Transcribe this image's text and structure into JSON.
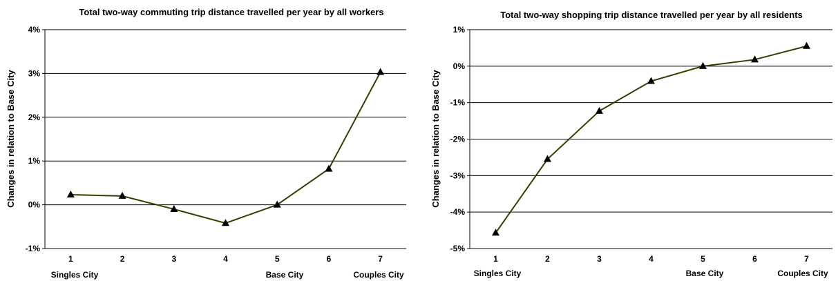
{
  "chart_data": [
    {
      "type": "line",
      "title": "Total two-way commuting trip distance travelled per year by all workers",
      "xlabel": "",
      "ylabel": "Changes in relation to Base City",
      "x": [
        1,
        2,
        3,
        4,
        5,
        6,
        7
      ],
      "x_tick_labels": [
        "1",
        "2",
        "3",
        "4",
        "5",
        "6",
        "7"
      ],
      "category_labels": [
        {
          "x": 1,
          "text": "Singles City"
        },
        {
          "x": 5,
          "text": "Base City"
        },
        {
          "x": 7,
          "text": "Couples City"
        }
      ],
      "ylim": [
        -1,
        4
      ],
      "y_ticks": [
        -1,
        0,
        1,
        2,
        3,
        4
      ],
      "y_tick_labels": [
        "-1%",
        "0%",
        "1%",
        "2%",
        "3%",
        "4%"
      ],
      "series": [
        {
          "values": [
            0.23,
            0.2,
            -0.1,
            -0.42,
            0.0,
            0.82,
            3.03
          ]
        }
      ],
      "marker": "triangle",
      "grid": "horizontal",
      "line_color": "#3b3b00",
      "marker_color": "#000000"
    },
    {
      "type": "line",
      "title": "Total two-way shopping trip distance travelled per year by all residents",
      "xlabel": "",
      "ylabel": "Changes in relation to Base City",
      "x": [
        1,
        2,
        3,
        4,
        5,
        6,
        7
      ],
      "x_tick_labels": [
        "1",
        "2",
        "3",
        "4",
        "5",
        "6",
        "7"
      ],
      "category_labels": [
        {
          "x": 1,
          "text": "Singles City"
        },
        {
          "x": 5,
          "text": "Base City"
        },
        {
          "x": 7,
          "text": "Couples City"
        }
      ],
      "ylim": [
        -5,
        1
      ],
      "y_ticks": [
        -5,
        -4,
        -3,
        -2,
        -1,
        0,
        1
      ],
      "y_tick_labels": [
        "-5%",
        "-4%",
        "-3%",
        "-2%",
        "-1%",
        "0%",
        "1%"
      ],
      "series": [
        {
          "values": [
            -4.57,
            -2.55,
            -1.23,
            -0.41,
            0.0,
            0.18,
            0.55
          ]
        }
      ],
      "marker": "triangle",
      "grid": "horizontal",
      "line_color": "#3b3b00",
      "marker_color": "#000000"
    }
  ]
}
